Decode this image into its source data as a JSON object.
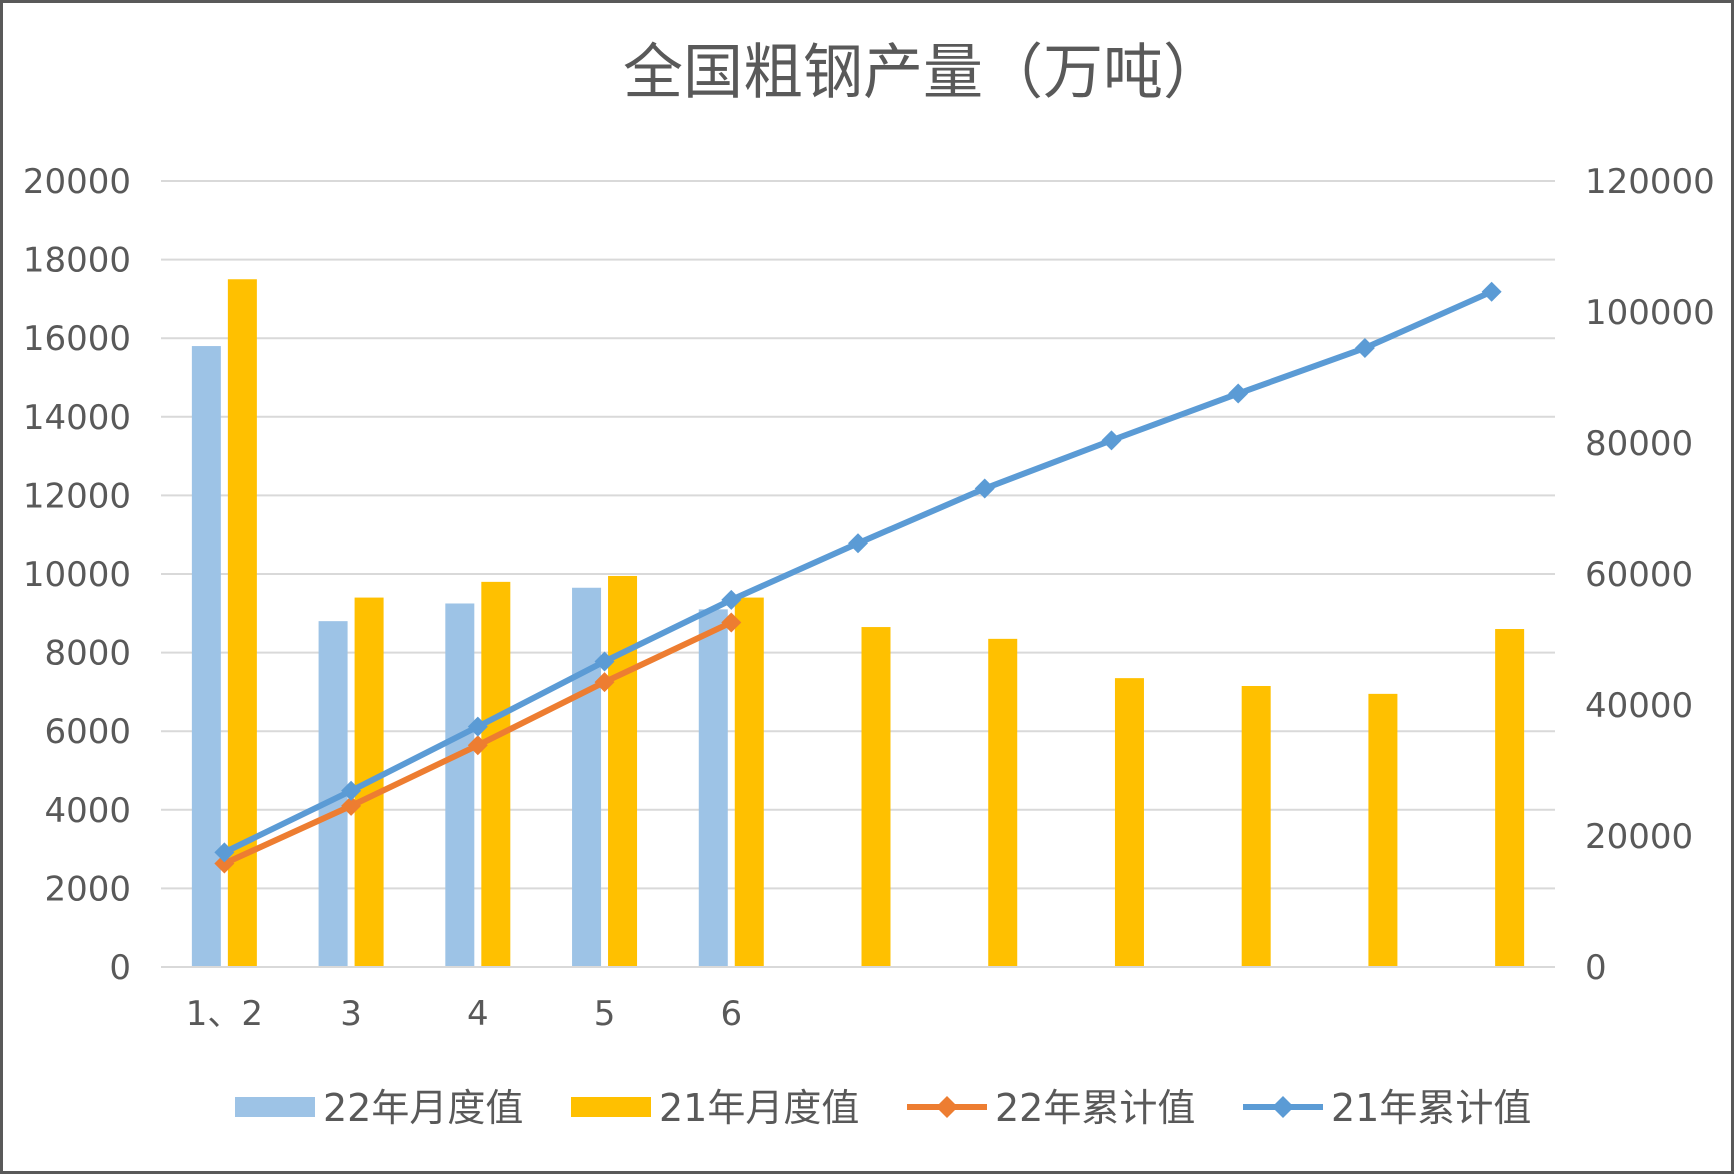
{
  "chart_data": {
    "type": "bar",
    "title": "全国粗钢产量（万吨）",
    "categories": [
      "1、2",
      "3",
      "4",
      "5",
      "6",
      "",
      "",
      "",
      "",
      "",
      ""
    ],
    "y_left": {
      "min": 0,
      "max": 20000,
      "ticks": [
        "0",
        "2000",
        "4000",
        "6000",
        "8000",
        "10000",
        "12000",
        "14000",
        "16000",
        "18000",
        "20000"
      ]
    },
    "y_right": {
      "min": 0,
      "max": 120000,
      "ticks": [
        "0",
        "20000",
        "40000",
        "60000",
        "80000",
        "100000",
        "120000"
      ]
    },
    "grid": true,
    "legend_position": "bottom",
    "series": [
      {
        "name": "22年月度值",
        "type": "bar",
        "axis": "left",
        "color": "#9DC3E6",
        "values": [
          15800,
          8800,
          9250,
          9650,
          9100,
          null,
          null,
          null,
          null,
          null,
          null
        ]
      },
      {
        "name": "21年月度值",
        "type": "bar",
        "axis": "left",
        "color": "#FFC000",
        "values": [
          17500,
          9400,
          9800,
          9950,
          9400,
          8650,
          8350,
          7350,
          7150,
          6950,
          8600
        ]
      },
      {
        "name": "22年累计值",
        "type": "line",
        "axis": "right",
        "color": "#ED7D31",
        "marker": "diamond",
        "values": [
          15800,
          24600,
          33850,
          43500,
          52600,
          null,
          null,
          null,
          null,
          null,
          null
        ]
      },
      {
        "name": "21年累计值",
        "type": "line",
        "axis": "right",
        "color": "#5B9BD5",
        "marker": "diamond",
        "values": [
          17500,
          26900,
          36700,
          46650,
          56050,
          64700,
          73050,
          80400,
          87550,
          94500,
          103100
        ]
      }
    ]
  }
}
